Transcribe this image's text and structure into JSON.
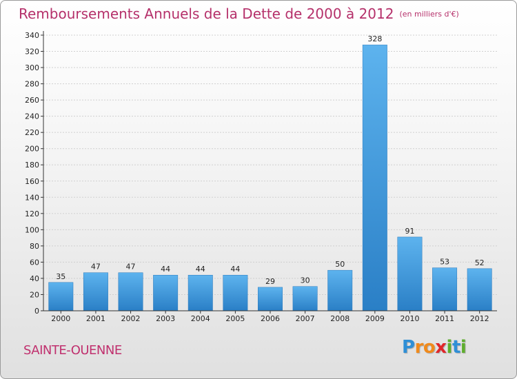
{
  "chart_data": {
    "type": "bar",
    "title": "Remboursements Annuels de la Dette de 2000 à 2012",
    "unit": "(en milliers d'€)",
    "categories": [
      "2000",
      "2001",
      "2002",
      "2003",
      "2004",
      "2005",
      "2006",
      "2007",
      "2008",
      "2009",
      "2010",
      "2011",
      "2012"
    ],
    "values": [
      35,
      47,
      47,
      44,
      44,
      44,
      29,
      30,
      50,
      328,
      91,
      53,
      52
    ],
    "ylim": [
      0,
      340
    ],
    "yticks": [
      0,
      20,
      40,
      60,
      80,
      100,
      120,
      140,
      160,
      180,
      200,
      220,
      240,
      260,
      280,
      300,
      320,
      340
    ],
    "grid": true,
    "bar_color": "#3f9be0"
  },
  "footer": {
    "commune": "SAINTE-OUENNE",
    "logo_letters": [
      {
        "t": "P",
        "c": "#2f8fd6"
      },
      {
        "t": "r",
        "c": "#f08a1c"
      },
      {
        "t": "o",
        "c": "#f08a1c"
      },
      {
        "t": "x",
        "c": "#e0262a"
      },
      {
        "t": "i",
        "c": "#5fae2e"
      },
      {
        "t": "t",
        "c": "#2f8fd6"
      },
      {
        "t": "i",
        "c": "#5fae2e"
      }
    ]
  }
}
